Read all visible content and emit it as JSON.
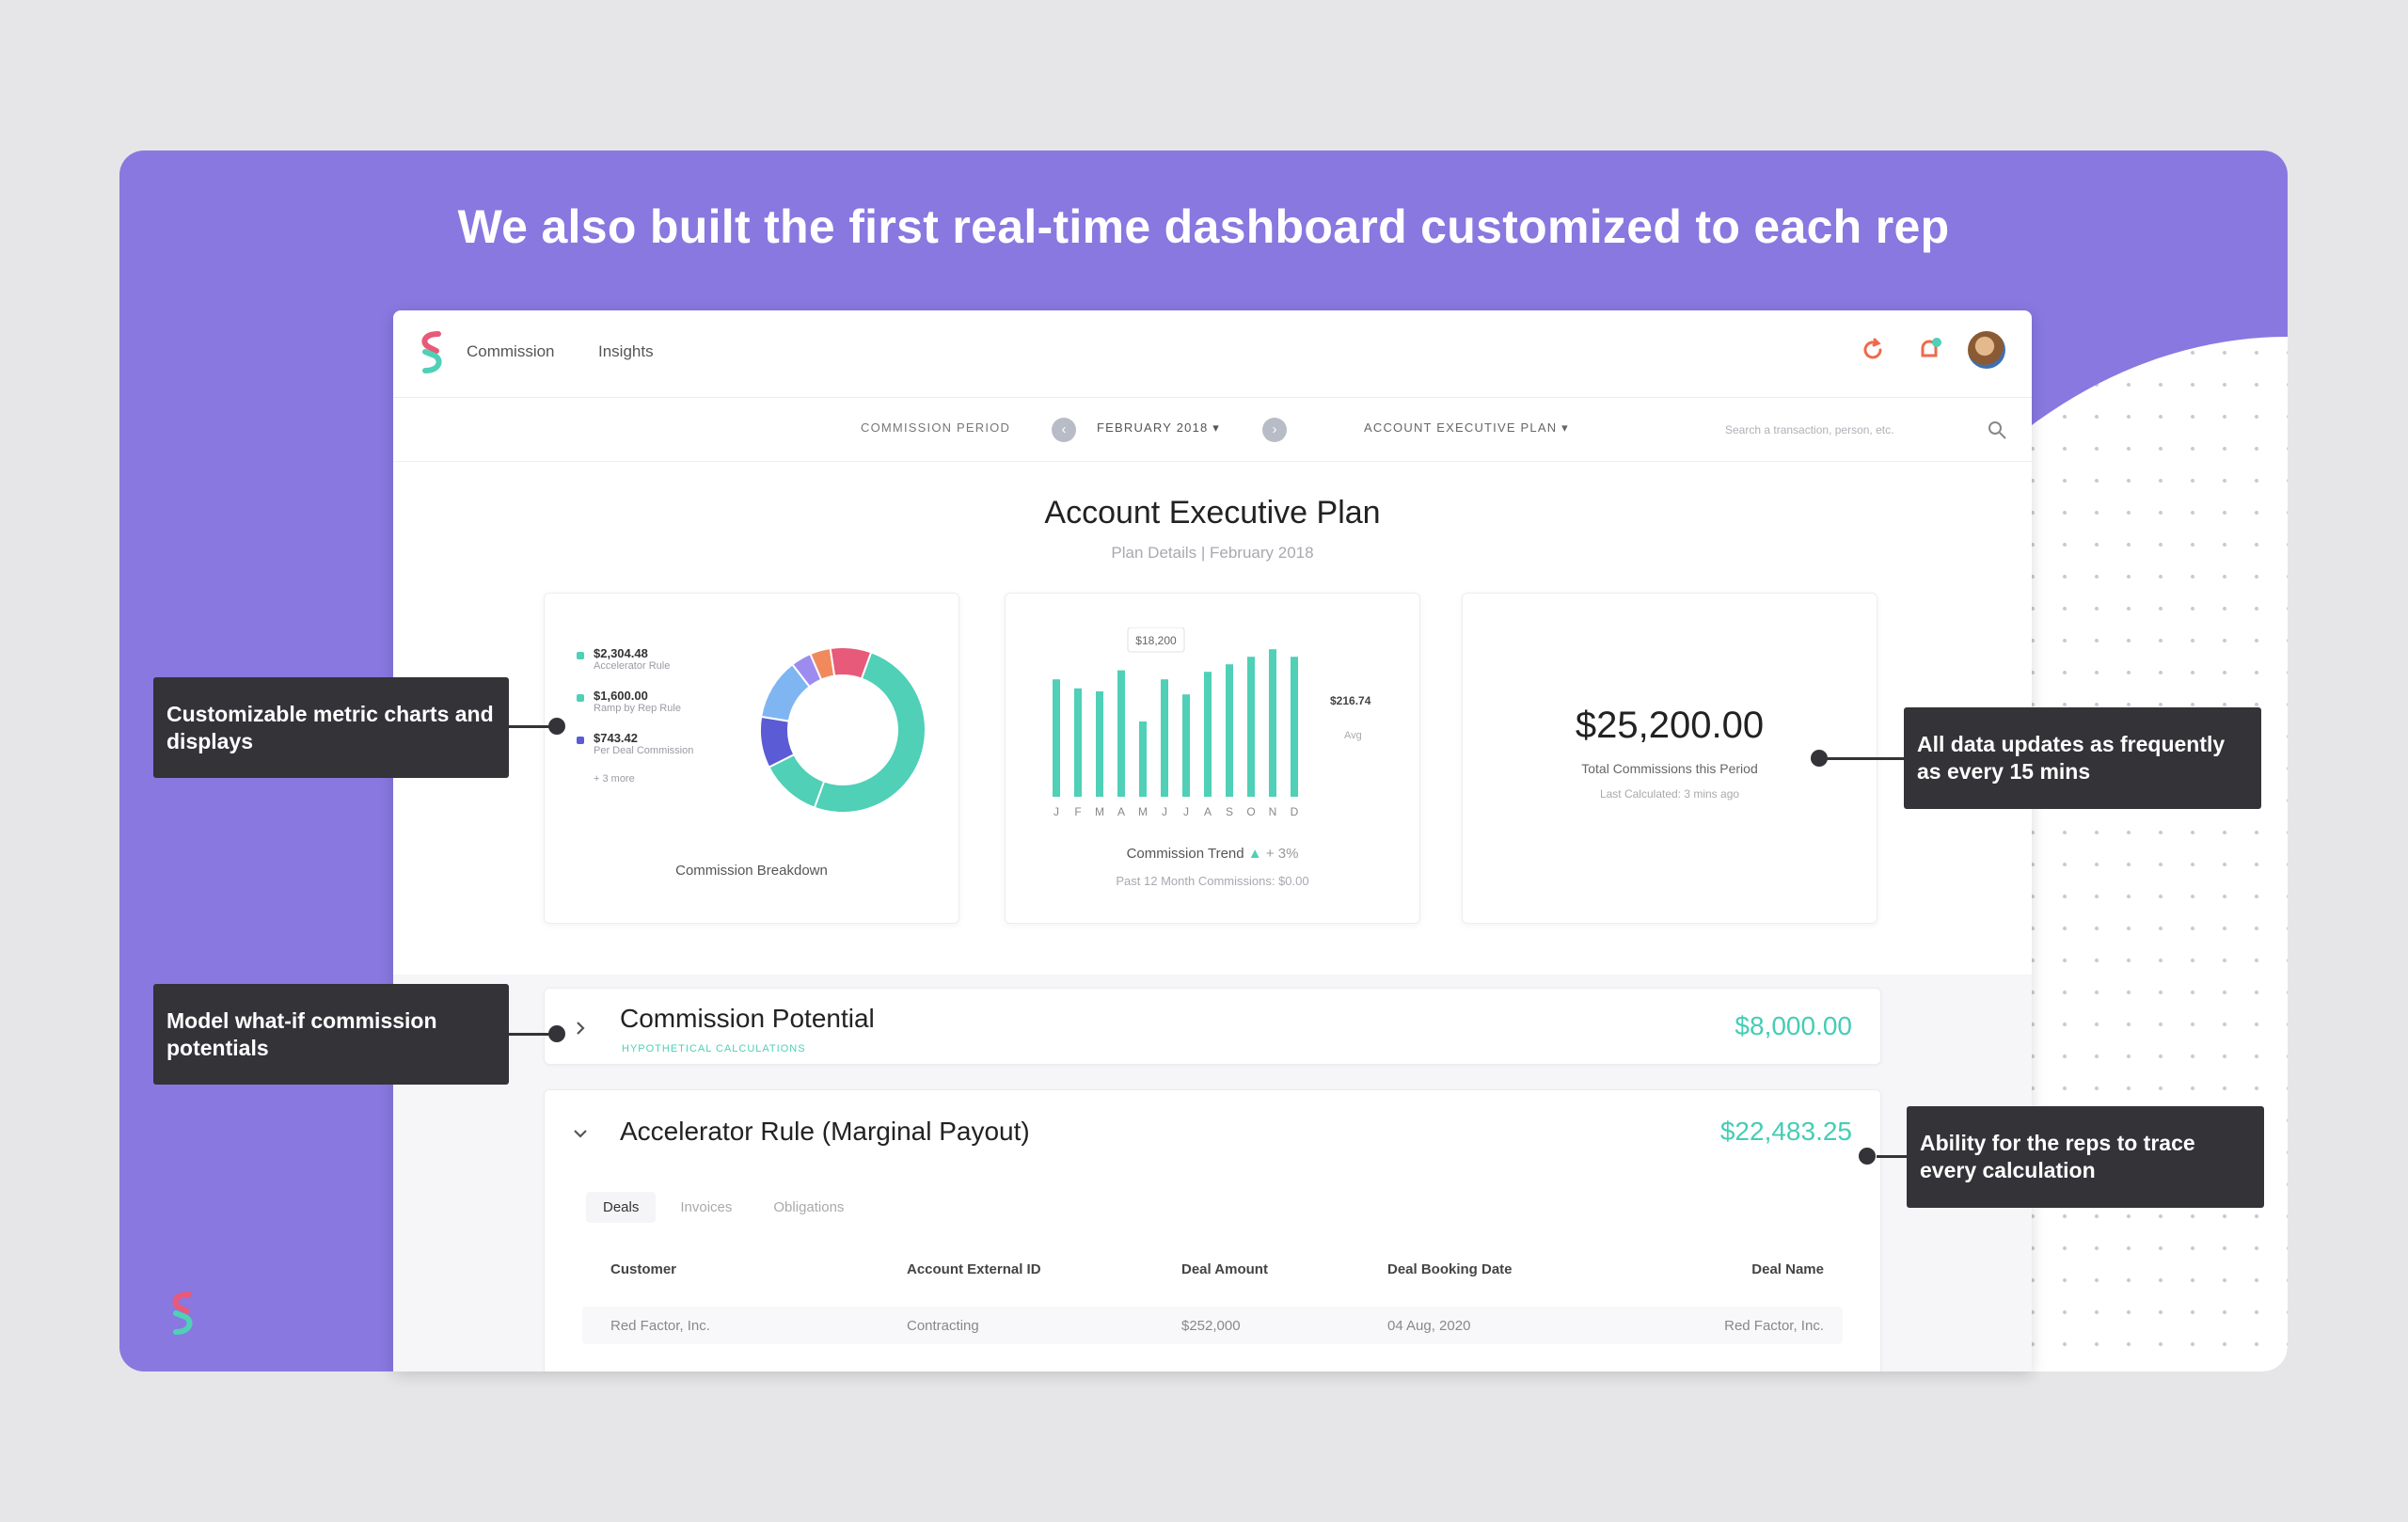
{
  "headline": "We also built the first real-time dashboard customized to each rep",
  "app": {
    "nav": [
      "Commission",
      "Insights"
    ],
    "filters": {
      "period_label": "COMMISSION PERIOD",
      "period_value": "FEBRUARY 2018",
      "plan_value": "ACCOUNT EXECUTIVE PLAN",
      "search_placeholder": "Search a transaction, person, etc."
    },
    "plan": {
      "title": "Account Executive Plan",
      "subtitle": "Plan Details  |  February 2018"
    },
    "breakdown": {
      "items": [
        {
          "value": "$2,304.48",
          "label": "Accelerator Rule",
          "color": "#4fd0b7"
        },
        {
          "value": "$1,600.00",
          "label": "Ramp by Rep Rule",
          "color": "#4fd0b7"
        },
        {
          "value": "$743.42",
          "label": "Per Deal Commission",
          "color": "#5b5bd6"
        }
      ],
      "more": "+ 3 more",
      "caption": "Commission Breakdown"
    },
    "trend": {
      "months": [
        "J",
        "F",
        "M",
        "A",
        "M",
        "J",
        "J",
        "A",
        "S",
        "O",
        "N",
        "D"
      ],
      "tooltip": "$18,200",
      "right_value": "$216.74",
      "right_sub": "Avg",
      "caption": "Commission Trend",
      "change": "+ 3%",
      "sub": "Past 12 Month Commissions: $0.00"
    },
    "total": {
      "amount": "$25,200.00",
      "label": "Total Commissions this Period",
      "sub": "Last Calculated: 3 mins ago"
    },
    "potential": {
      "title": "Commission Potential",
      "sub": "Hypothetical Calculations",
      "amount": "$8,000.00"
    },
    "accelerator": {
      "title": "Accelerator Rule (Marginal Payout)",
      "amount": "$22,483.25",
      "tabs": [
        "Deals",
        "Invoices",
        "Obligations"
      ],
      "columns": [
        "Customer",
        "Account External ID",
        "Deal Amount",
        "Deal Booking Date",
        "Deal Name"
      ],
      "rows": [
        [
          "Red Factor, Inc.",
          "Contracting",
          "$252,000",
          "04 Aug, 2020",
          "Red Factor, Inc."
        ]
      ]
    }
  },
  "callouts": {
    "charts": "Customizable metric charts and displays",
    "updates": "All data updates as frequently as every 15 mins",
    "whatif": "Model what-if commission potentials",
    "trace": "Ability for the reps to trace every calculation"
  },
  "chart_data": {
    "type": "bar",
    "categories": [
      "J",
      "F",
      "M",
      "A",
      "M",
      "J",
      "J",
      "A",
      "S",
      "O",
      "N",
      "D"
    ],
    "values": [
      78,
      72,
      70,
      84,
      50,
      78,
      68,
      83,
      88,
      93,
      98,
      93
    ],
    "ylim": [
      0,
      100
    ]
  },
  "donut_data": {
    "type": "pie",
    "values": [
      50,
      12,
      10,
      12,
      4,
      4,
      8
    ],
    "colors": [
      "#4fd0b7",
      "#4fd0b7",
      "#5b5bd6",
      "#7fb6f2",
      "#9d8cf0",
      "#f08a5d",
      "#e85a7a"
    ]
  }
}
